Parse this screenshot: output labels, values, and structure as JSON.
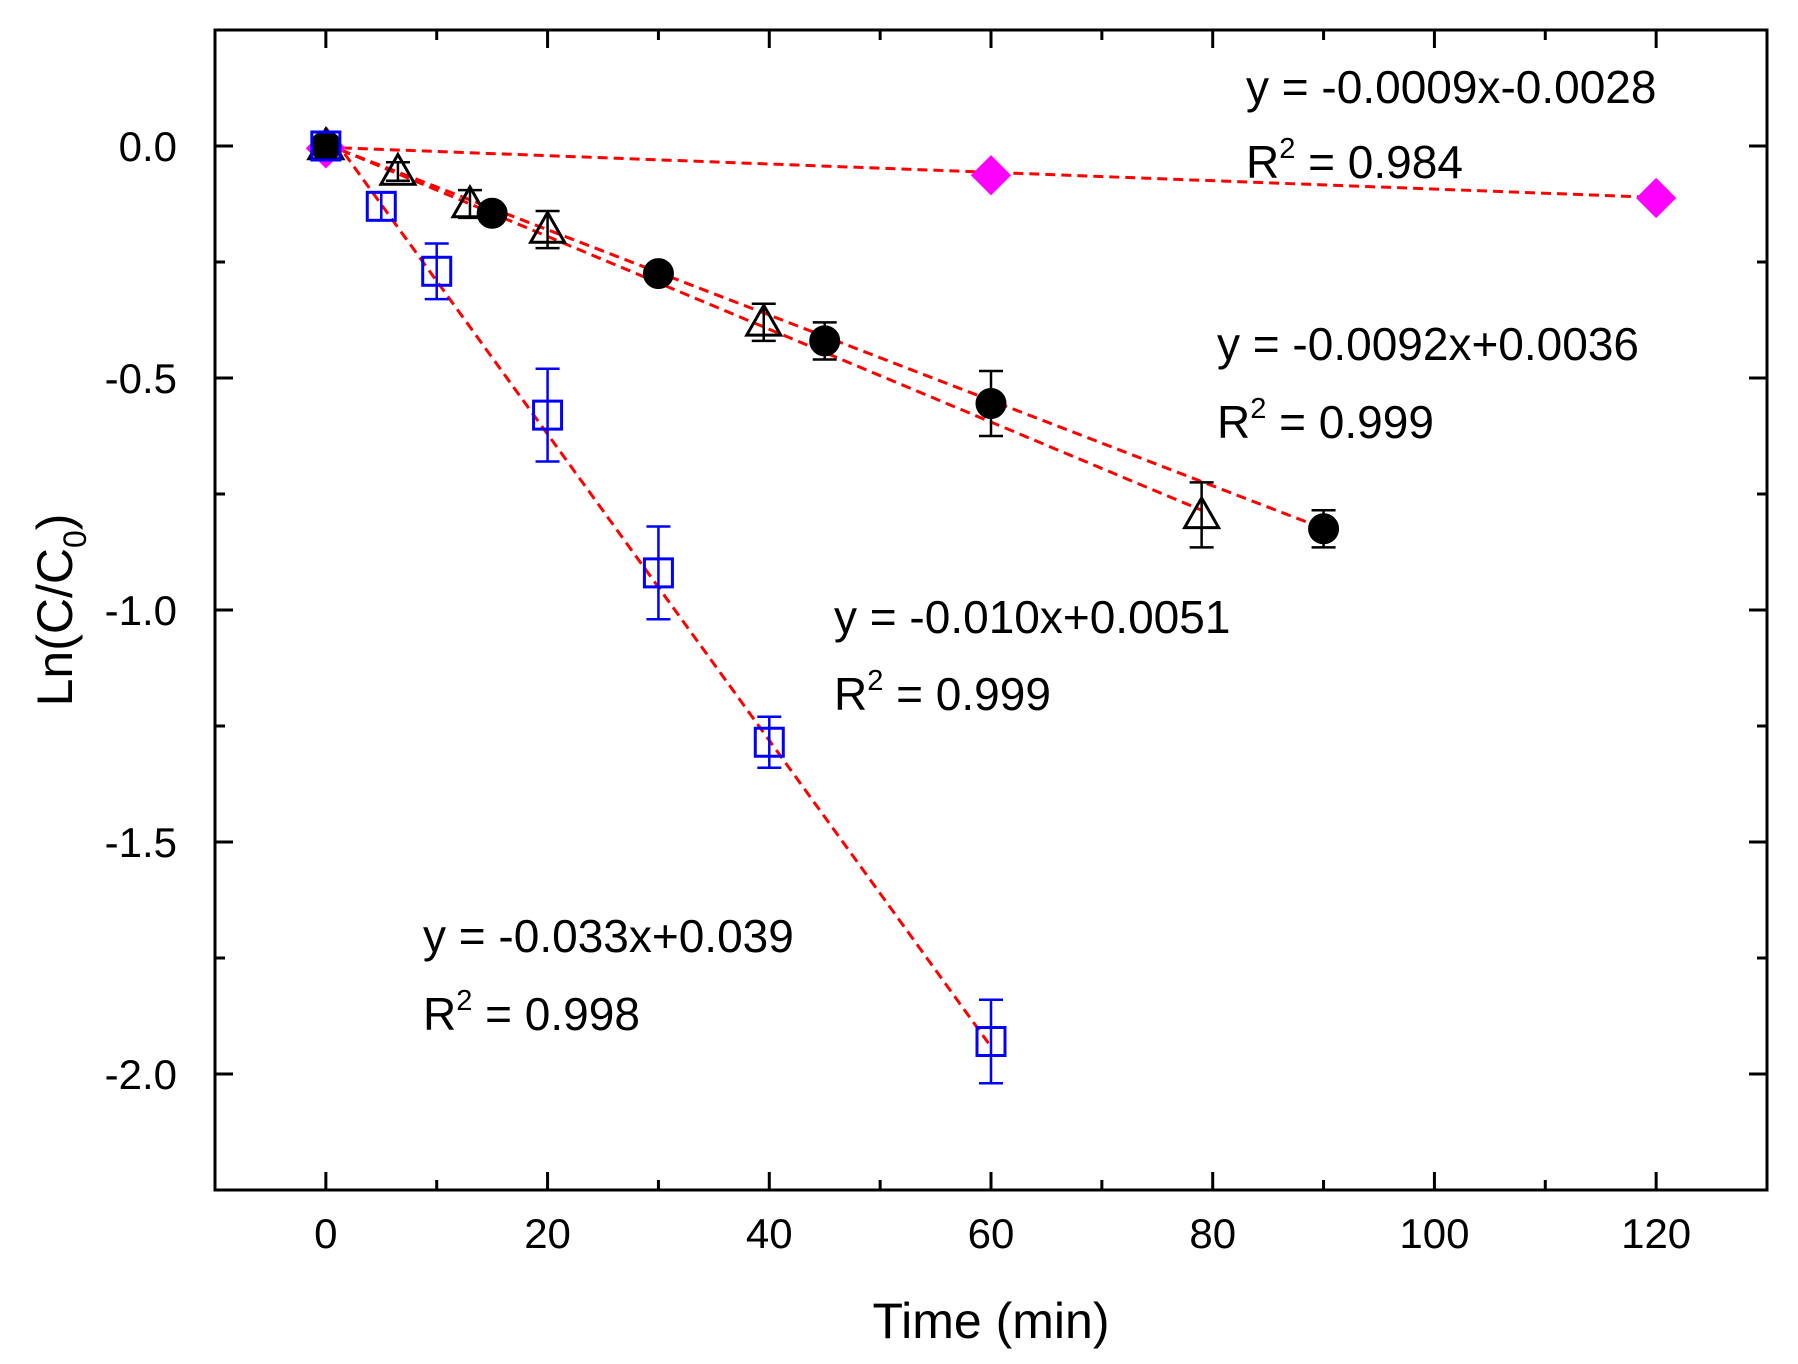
{
  "chart_data": {
    "type": "scatter",
    "xlabel": "Time (min)",
    "ylabel_main": "Ln(C/C",
    "ylabel_sub": "0",
    "ylabel_close": ")",
    "xlim": [
      -10,
      130
    ],
    "ylim": [
      -2.25,
      0.25
    ],
    "xticks": [
      0,
      20,
      40,
      60,
      80,
      100,
      120
    ],
    "xtick_labels": [
      "0",
      "20",
      "40",
      "60",
      "80",
      "100",
      "120"
    ],
    "yticks": [
      0.0,
      -0.5,
      -1.0,
      -1.5,
      -2.0
    ],
    "ytick_labels": [
      "0.0",
      "-0.5",
      "-1.0",
      "-1.5",
      "-2.0"
    ],
    "grid": false,
    "series": [
      {
        "marker": "diamond",
        "color": "#ff00ff",
        "filled": true,
        "points": [
          {
            "x": 0,
            "y": -0.005,
            "err": 0
          },
          {
            "x": 60,
            "y": -0.063,
            "err": 0
          },
          {
            "x": 120,
            "y": -0.112,
            "err": 0
          }
        ],
        "fit": {
          "slope": -0.0009,
          "intercept": -0.0028,
          "x0": 0,
          "x1": 120
        },
        "equation": "y = -0.0009x-0.0028",
        "r2_prefix": "R",
        "r2_exp": "2",
        "r2_rest": " = 0.984"
      },
      {
        "marker": "circle",
        "color": "#000000",
        "filled": true,
        "points": [
          {
            "x": 0,
            "y": 0.0,
            "err": 0
          },
          {
            "x": 15,
            "y": -0.145,
            "err": 0.01
          },
          {
            "x": 30,
            "y": -0.275,
            "err": 0.01
          },
          {
            "x": 45,
            "y": -0.42,
            "err": 0.04
          },
          {
            "x": 60,
            "y": -0.555,
            "err": 0.07
          },
          {
            "x": 90,
            "y": -0.825,
            "err": 0.04
          }
        ],
        "fit": {
          "slope": -0.0092,
          "intercept": 0.0036,
          "x0": 0,
          "x1": 90
        },
        "equation": "y = -0.0092x+0.0036",
        "r2_prefix": "R",
        "r2_exp": "2",
        "r2_rest": " = 0.999"
      },
      {
        "marker": "triangle",
        "color": "#000000",
        "filled": false,
        "points": [
          {
            "x": 0,
            "y": 0.0,
            "err": 0.02
          },
          {
            "x": 6.5,
            "y": -0.055,
            "err": 0.02
          },
          {
            "x": 13,
            "y": -0.125,
            "err": 0.03
          },
          {
            "x": 20,
            "y": -0.18,
            "err": 0.04
          },
          {
            "x": 39.5,
            "y": -0.38,
            "err": 0.04
          },
          {
            "x": 79,
            "y": -0.795,
            "err": 0.07
          }
        ],
        "fit": {
          "slope": -0.01,
          "intercept": 0.0051,
          "x0": 0,
          "x1": 79
        },
        "equation": "y = -0.010x+0.0051",
        "r2_prefix": "R",
        "r2_exp": "2",
        "r2_rest": " = 0.999"
      },
      {
        "marker": "square",
        "color": "#0000ff",
        "filled": false,
        "points": [
          {
            "x": 0,
            "y": 0.0,
            "err": 0.02
          },
          {
            "x": 5,
            "y": -0.13,
            "err": 0.03
          },
          {
            "x": 10,
            "y": -0.27,
            "err": 0.06
          },
          {
            "x": 20,
            "y": -0.58,
            "err": 0.1
          },
          {
            "x": 30,
            "y": -0.92,
            "err": 0.1
          },
          {
            "x": 40,
            "y": -1.285,
            "err": 0.055
          },
          {
            "x": 60,
            "y": -1.93,
            "err": 0.09
          }
        ],
        "fit": {
          "slope": -0.033,
          "intercept": 0.039,
          "x0": 0,
          "x1": 60
        },
        "equation": "y = -0.033x+0.039",
        "r2_prefix": "R",
        "r2_exp": "2",
        "r2_rest": " = 0.998"
      }
    ],
    "fit_line_color": "#ff0000"
  }
}
